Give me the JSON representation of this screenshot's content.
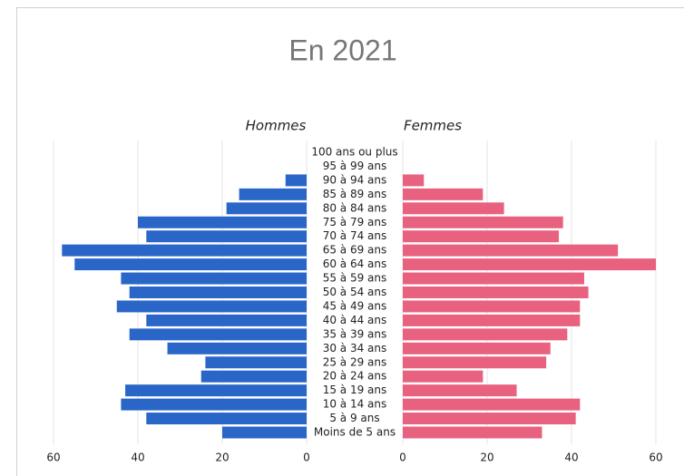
{
  "chart_data": {
    "type": "pyramid",
    "title": "En 2021",
    "categories": [
      "100 ans ou plus",
      "95 à 99 ans",
      "90 à 94 ans",
      "85 à 89 ans",
      "80 à 84 ans",
      "75 à 79 ans",
      "70 à 74 ans",
      "65 à 69 ans",
      "60 à 64 ans",
      "55 à 59 ans",
      "50 à 54 ans",
      "45 à 49 ans",
      "40 à 44 ans",
      "35 à 39 ans",
      "30 à 34 ans",
      "25 à 29 ans",
      "20 à 24 ans",
      "15 à 19 ans",
      "10 à 14 ans",
      "5 à 9 ans",
      "Moins de 5 ans"
    ],
    "series": [
      {
        "name": "Hommes",
        "color": "#2a66c8",
        "values": [
          0,
          0,
          5,
          16,
          19,
          40,
          38,
          58,
          55,
          44,
          42,
          45,
          38,
          42,
          33,
          24,
          25,
          43,
          44,
          38,
          20
        ]
      },
      {
        "name": "Femmes",
        "color": "#e8617f",
        "values": [
          0,
          0,
          5,
          19,
          24,
          38,
          37,
          51,
          60,
          43,
          44,
          42,
          42,
          39,
          35,
          34,
          19,
          27,
          42,
          41,
          33
        ]
      }
    ],
    "xlim": [
      0,
      60
    ],
    "xticks": [
      0,
      20,
      40,
      60
    ],
    "grid": true
  }
}
